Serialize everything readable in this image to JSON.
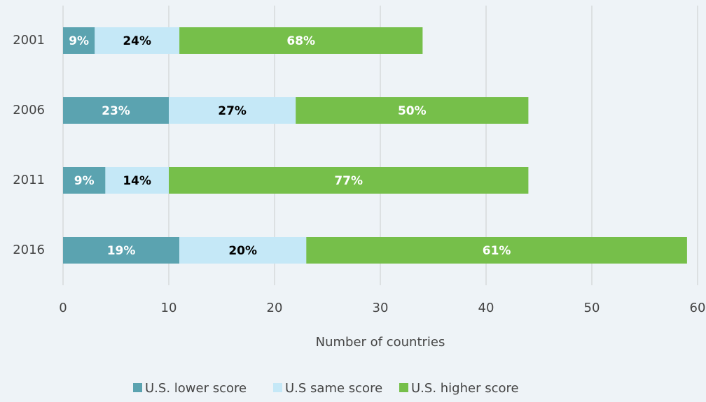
{
  "chart_data": {
    "type": "stacked-barh",
    "x_label": "Number  of countries",
    "categories": [
      "2001",
      "2006",
      "2011",
      "2016"
    ],
    "series": [
      {
        "name": "U.S. lower score",
        "color": "#5ba3b0",
        "label_color": "#ffffff",
        "values": [
          3,
          10,
          4,
          11
        ],
        "value_labels": [
          "9%",
          "23%",
          "9%",
          "19%"
        ]
      },
      {
        "name": "U.S same score",
        "color": "#c5e8f7",
        "label_color": "#000000",
        "values": [
          8,
          12,
          6,
          12
        ],
        "value_labels": [
          "24%",
          "27%",
          "14%",
          "20%"
        ]
      },
      {
        "name": "U.S. higher score",
        "color": "#76bf4a",
        "label_color": "#ffffff",
        "values": [
          23,
          22,
          34,
          36
        ],
        "value_labels": [
          "68%",
          "50%",
          "77%",
          "61%"
        ]
      }
    ],
    "xlim": [
      0,
      60
    ],
    "xticks": [
      0,
      10,
      20,
      30,
      40,
      50,
      60
    ],
    "grid": true,
    "legend": "bottom"
  }
}
